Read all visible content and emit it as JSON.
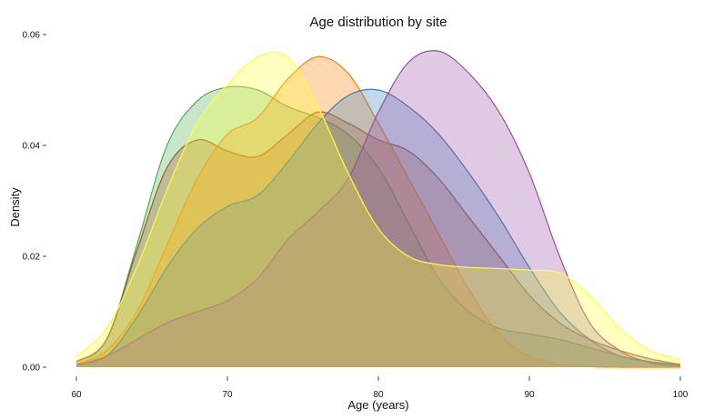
{
  "chart_data": {
    "type": "area",
    "title": "Age distribution by site",
    "xlabel": "Age (years)",
    "ylabel": "Density",
    "xlim": [
      60,
      100
    ],
    "ylim": [
      0,
      0.06
    ],
    "x_ticks": [
      60,
      70,
      80,
      90,
      100
    ],
    "x_tick_labels": [
      "60",
      "70",
      "80",
      "90",
      "100"
    ],
    "y_ticks": [
      0,
      0.02,
      0.04,
      0.06
    ],
    "y_tick_labels": [
      "0.00",
      "0.02",
      "0.04",
      "0.06"
    ],
    "grid": false,
    "legend": "none",
    "x": [
      60,
      62,
      64,
      66,
      68,
      70,
      72,
      74,
      76,
      78,
      80,
      82,
      84,
      86,
      88,
      90,
      92,
      94,
      96,
      98,
      100
    ],
    "series": [
      {
        "color": "#4daf4a",
        "values": [
          0.001,
          0.005,
          0.022,
          0.04,
          0.048,
          0.0505,
          0.05,
          0.047,
          0.045,
          0.042,
          0.036,
          0.026,
          0.016,
          0.01,
          0.007,
          0.006,
          0.005,
          0.0035,
          0.002,
          0.001,
          0.0005
        ]
      },
      {
        "color": "#a65628",
        "values": [
          0.001,
          0.005,
          0.021,
          0.036,
          0.041,
          0.039,
          0.038,
          0.042,
          0.046,
          0.044,
          0.041,
          0.039,
          0.034,
          0.027,
          0.02,
          0.013,
          0.008,
          0.005,
          0.003,
          0.0015,
          0.0005
        ]
      },
      {
        "color": "#ff7f00",
        "values": [
          0.0005,
          0.003,
          0.01,
          0.022,
          0.034,
          0.042,
          0.045,
          0.052,
          0.056,
          0.053,
          0.044,
          0.034,
          0.024,
          0.014,
          0.006,
          0.002,
          0.0005,
          0.0001,
          0,
          0,
          0
        ]
      },
      {
        "color": "#377eb8",
        "values": [
          0.0005,
          0.002,
          0.009,
          0.018,
          0.025,
          0.029,
          0.031,
          0.037,
          0.044,
          0.049,
          0.05,
          0.047,
          0.042,
          0.035,
          0.027,
          0.018,
          0.01,
          0.005,
          0.002,
          0.001,
          0.0003
        ]
      },
      {
        "color": "#984ea3",
        "values": [
          0.0003,
          0.002,
          0.005,
          0.008,
          0.01,
          0.012,
          0.016,
          0.023,
          0.028,
          0.034,
          0.046,
          0.055,
          0.057,
          0.053,
          0.046,
          0.035,
          0.02,
          0.008,
          0.003,
          0.0008,
          0.0002
        ]
      },
      {
        "color": "#ffff33",
        "values": [
          0.002,
          0.007,
          0.018,
          0.032,
          0.044,
          0.051,
          0.056,
          0.056,
          0.047,
          0.035,
          0.025,
          0.02,
          0.0185,
          0.018,
          0.0178,
          0.0175,
          0.017,
          0.013,
          0.007,
          0.003,
          0.0015
        ]
      }
    ]
  }
}
